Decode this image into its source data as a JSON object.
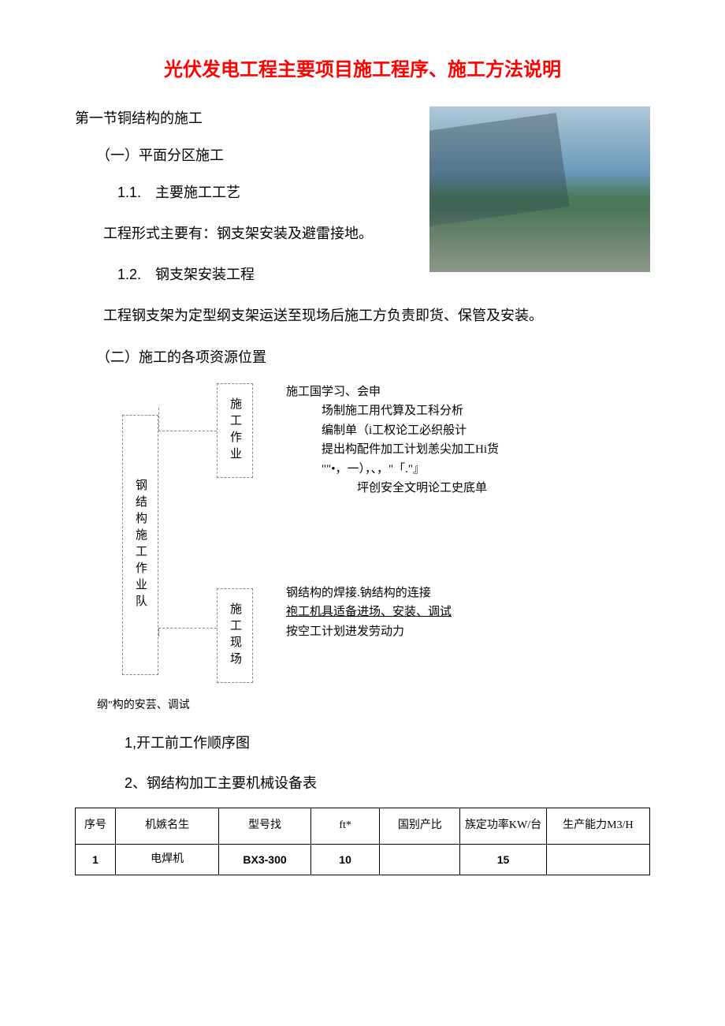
{
  "title": "光伏发电工程主要项目施工程序、施工方法说明",
  "section1": "第一节铜结构的施工",
  "sub1": "（一）平面分区施工",
  "h11": "1.1.　主要施工工艺",
  "p1": "工程形式主要有：钢支架安装及避雷接地。",
  "h12": "1.2.　钢支架安装工程",
  "p2": "工程钢支架为定型纲支架运送至现场后施工方负责即货、保管及安装。",
  "sub2": "（二）施工的各项资源位置",
  "diagram": {
    "mainBox": "钢结构施工作业队",
    "topBox": "施工作业",
    "bottomBox": "施工现场",
    "rightLines": {
      "l1": "施工国学习、会申",
      "l2": "场制施工用代算及工科分析",
      "l3": "编制单（i工权论工必织般计",
      "l4": "提出构配件加工计划恙尖加工Hi货",
      "l5": "\"\"•，一），、，\"「.\"』",
      "l6": "坪创安全文明论工史底单",
      "l7": "钢结构的焊接.钠结构的连接",
      "l8": "袍工机具适备进场、安装、调试",
      "l9": "按空工计划进发劳动力"
    }
  },
  "footnote": "纲\"构的安芸、调试",
  "list1": "1,开工前工作顺序图",
  "list2": "2、钢结构加工主要机械设备表",
  "table": {
    "headers": {
      "seq": "序号",
      "name": "机嫉名生",
      "model": "型号找",
      "ft": "ft*",
      "country": "国别产比",
      "power": "族定功率KW/台",
      "cap": "生产能力M3/H"
    },
    "rows": [
      {
        "seq": "1",
        "name": "电焊机",
        "model": "BX3-300",
        "ft": "10",
        "country": "",
        "power": "15",
        "cap": ""
      }
    ]
  },
  "colors": {
    "title": "#ff0000",
    "text": "#000000",
    "background": "#ffffff",
    "boxBorder": "#888888"
  }
}
